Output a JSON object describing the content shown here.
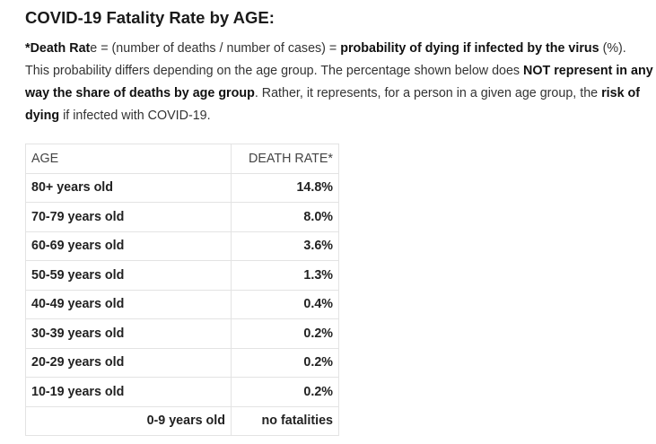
{
  "title": "COVID-19 Fatality Rate by AGE:",
  "paragraph": [
    {
      "text": "*Death Rat",
      "bold": true
    },
    {
      "text": "e = (number of deaths / number of cases) = ",
      "bold": false
    },
    {
      "text": "probability of dying if infected by the virus",
      "bold": true
    },
    {
      "text": " (%). This probability differs depending on the age group. The percentage shown below does ",
      "bold": false
    },
    {
      "text": "NOT represent in any way the share of deaths by age group",
      "bold": true
    },
    {
      "text": ". Rather, it represents, for a person in a given age group, the ",
      "bold": false
    },
    {
      "text": "risk of dying",
      "bold": true
    },
    {
      "text": " if infected with COVID-19.",
      "bold": false
    }
  ],
  "table": {
    "header": [
      "AGE",
      "DEATH RATE*"
    ],
    "rows": [
      [
        "80+ years old",
        "14.8%"
      ],
      [
        "70-79 years old",
        "8.0%"
      ],
      [
        "60-69 years old",
        "3.6%"
      ],
      [
        "50-59 years old",
        "1.3%"
      ],
      [
        "40-49 years old",
        "0.4%"
      ],
      [
        "30-39 years old",
        "0.2%"
      ],
      [
        "20-29 years old",
        "0.2%"
      ],
      [
        "10-19 years old",
        "0.2%"
      ],
      [
        "0-9 years old",
        "no fatalities"
      ]
    ]
  }
}
